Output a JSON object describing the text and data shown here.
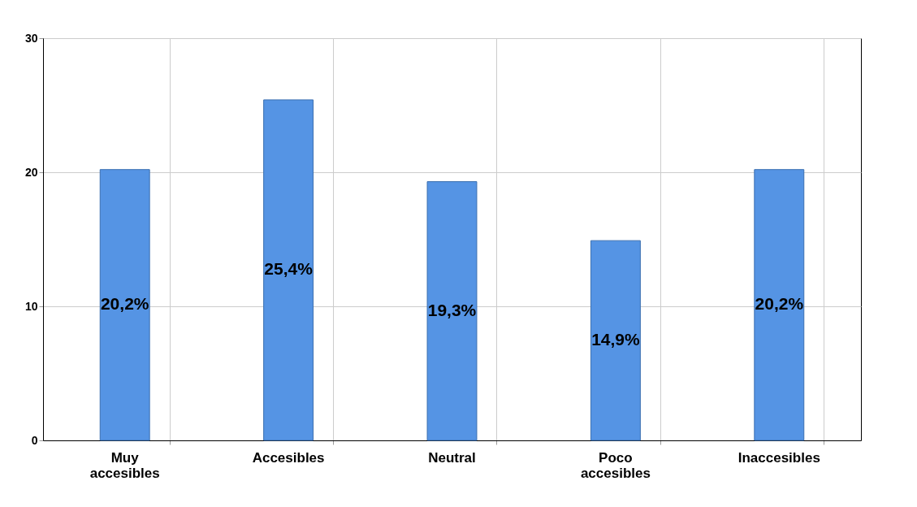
{
  "chart_data": {
    "type": "bar",
    "categories": [
      "Muy accesibles",
      "Accesibles",
      "Neutral",
      "Poco accesibles",
      "Inaccesibles"
    ],
    "values": [
      20.2,
      25.4,
      19.3,
      14.9,
      20.2
    ],
    "value_labels": [
      "20,2%",
      "25,4%",
      "19,3%",
      "14,9%",
      "20,2%"
    ],
    "color": "#5594e4",
    "ylim": [
      0,
      30
    ],
    "yticks": [
      0,
      10,
      20,
      30
    ],
    "grid": true
  }
}
